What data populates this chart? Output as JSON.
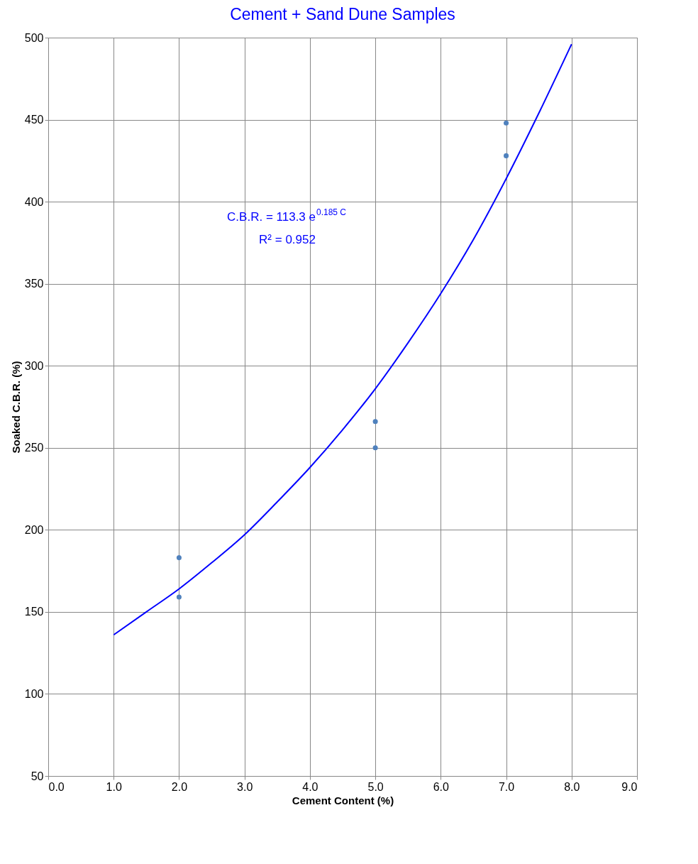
{
  "chart_data": {
    "type": "scatter",
    "title": "Cement + Sand Dune Samples",
    "xlabel": "Cement Content (%)",
    "ylabel": "Soaked C.B.R. (%)",
    "xlim": [
      0,
      9
    ],
    "xticks": [
      {
        "value": 0,
        "label": "0.0"
      },
      {
        "value": 1,
        "label": "1.0"
      },
      {
        "value": 2,
        "label": "2.0"
      },
      {
        "value": 3,
        "label": "3.0"
      },
      {
        "value": 4,
        "label": "4.0"
      },
      {
        "value": 5,
        "label": "5.0"
      },
      {
        "value": 6,
        "label": "6.0"
      },
      {
        "value": 7,
        "label": "7.0"
      },
      {
        "value": 8,
        "label": "8.0"
      },
      {
        "value": 9,
        "label": "9.0"
      }
    ],
    "ylim": [
      50,
      500
    ],
    "yticks": [
      50,
      100,
      150,
      200,
      250,
      300,
      350,
      400,
      450,
      500
    ],
    "grid": true,
    "legend": false,
    "series": [
      {
        "type": "scatter",
        "color": "#4f81bd",
        "marker": "circle",
        "x": [
          2,
          2,
          5,
          5,
          7,
          7
        ],
        "values": [
          183,
          159,
          266,
          250,
          448,
          428
        ]
      },
      {
        "type": "line",
        "color": "#0000ff",
        "marker": "none",
        "x": [
          1,
          1.5,
          2,
          2.5,
          3,
          3.5,
          4,
          4.5,
          5,
          5.5,
          6,
          6.5,
          7,
          7.5,
          8
        ],
        "values": [
          136,
          150,
          164,
          180,
          197,
          217,
          238,
          261,
          286,
          314,
          344,
          377,
          414,
          454,
          496
        ]
      }
    ],
    "annotations": [
      "C.B.R. = 113.3 e$^{0.185 C}$",
      "R² = 0.952"
    ]
  }
}
